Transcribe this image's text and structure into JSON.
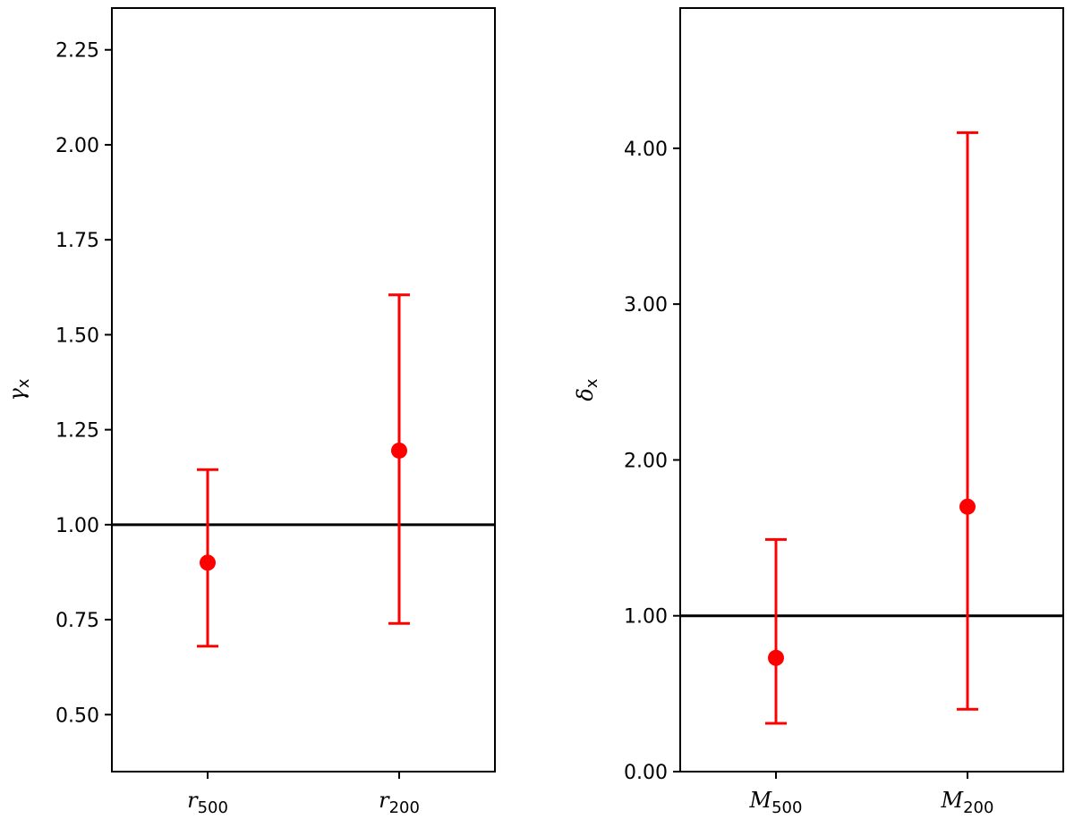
{
  "chart_data": [
    {
      "type": "scatter",
      "ylabel_symbol": "γ",
      "ylabel_subscript": "x",
      "ylim": [
        0.35,
        2.36
      ],
      "yticks": [
        "0.50",
        "0.75",
        "1.00",
        "1.25",
        "1.50",
        "1.75",
        "2.00",
        "2.25"
      ],
      "ytick_values": [
        0.5,
        0.75,
        1.0,
        1.25,
        1.5,
        1.75,
        2.0,
        2.25
      ],
      "categories": [
        {
          "symbol": "r",
          "subscript": "500"
        },
        {
          "symbol": "r",
          "subscript": "200"
        }
      ],
      "points": [
        {
          "y": 0.9,
          "low": 0.68,
          "high": 1.145
        },
        {
          "y": 1.195,
          "low": 0.74,
          "high": 1.605
        }
      ],
      "reference_line": 1.0,
      "marker_color": "#ff0000",
      "line_color": "#000000"
    },
    {
      "type": "scatter",
      "ylabel_symbol": "δ",
      "ylabel_subscript": "x",
      "ylim": [
        0.0,
        4.9
      ],
      "yticks": [
        "0.00",
        "1.00",
        "2.00",
        "3.00",
        "4.00"
      ],
      "ytick_values": [
        0,
        1,
        2,
        3,
        4
      ],
      "categories": [
        {
          "symbol": "M",
          "subscript": "500"
        },
        {
          "symbol": "M",
          "subscript": "200"
        }
      ],
      "points": [
        {
          "y": 0.73,
          "low": 0.31,
          "high": 1.49
        },
        {
          "y": 1.7,
          "low": 0.4,
          "high": 4.1
        }
      ],
      "reference_line": 1.0,
      "marker_color": "#ff0000",
      "line_color": "#000000"
    }
  ]
}
